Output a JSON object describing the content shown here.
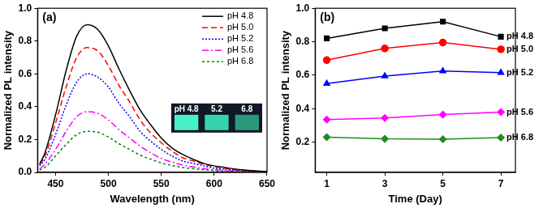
{
  "chart_data": [
    {
      "type": "line",
      "title": "(a)",
      "x_label": "Wavelength (nm)",
      "y_label": "Normalized PL intensity",
      "x": [
        435,
        440,
        450,
        460,
        470,
        480,
        490,
        500,
        510,
        520,
        530,
        540,
        550,
        560,
        570,
        580,
        590,
        600,
        610,
        620,
        630,
        640,
        650
      ],
      "series": [
        {
          "name": "pH 4.8",
          "color": "#000000",
          "line_style": "solid",
          "values": [
            0.05,
            0.12,
            0.35,
            0.62,
            0.83,
            0.9,
            0.87,
            0.77,
            0.63,
            0.5,
            0.38,
            0.29,
            0.21,
            0.15,
            0.11,
            0.08,
            0.055,
            0.04,
            0.03,
            0.02,
            0.014,
            0.009,
            0.005
          ]
        },
        {
          "name": "pH 5.0",
          "color": "#ff0000",
          "line_style": "dashed",
          "values": [
            0.05,
            0.1,
            0.3,
            0.52,
            0.7,
            0.76,
            0.74,
            0.65,
            0.53,
            0.43,
            0.32,
            0.24,
            0.18,
            0.13,
            0.09,
            0.07,
            0.05,
            0.035,
            0.025,
            0.017,
            0.011,
            0.008,
            0.005
          ]
        },
        {
          "name": "pH 5.2",
          "color": "#0000ff",
          "line_style": "dotted",
          "values": [
            0.04,
            0.08,
            0.23,
            0.41,
            0.55,
            0.6,
            0.58,
            0.52,
            0.42,
            0.34,
            0.25,
            0.19,
            0.14,
            0.1,
            0.07,
            0.055,
            0.04,
            0.026,
            0.02,
            0.013,
            0.009,
            0.006,
            0.004
          ]
        },
        {
          "name": "pH 5.6",
          "color": "#ff00ff",
          "line_style": "dashdot",
          "values": [
            0.02,
            0.05,
            0.14,
            0.25,
            0.34,
            0.37,
            0.36,
            0.32,
            0.26,
            0.21,
            0.16,
            0.12,
            0.085,
            0.063,
            0.045,
            0.033,
            0.023,
            0.016,
            0.012,
            0.008,
            0.006,
            0.004,
            0.002
          ]
        },
        {
          "name": "pH 6.8",
          "color": "#008000",
          "line_style": "shortdash",
          "values": [
            0.015,
            0.03,
            0.1,
            0.17,
            0.23,
            0.25,
            0.245,
            0.215,
            0.175,
            0.14,
            0.105,
            0.08,
            0.058,
            0.042,
            0.03,
            0.022,
            0.016,
            0.011,
            0.008,
            0.006,
            0.004,
            0.003,
            0.002
          ]
        }
      ],
      "xlim": [
        433,
        650
      ],
      "xticks": [
        450,
        500,
        550,
        600,
        650
      ],
      "ylim": [
        0,
        1
      ],
      "yticks": [
        {
          "value": 0,
          "label": "0.0"
        },
        0.2,
        0.4,
        0.6,
        0.8,
        {
          "value": 1,
          "label": "1.0"
        }
      ],
      "grid": false,
      "legend": "upper right",
      "annotations": [
        "pH 4.8",
        "5.2",
        "6.8"
      ]
    },
    {
      "type": "line",
      "title": "(b)",
      "x_label": "Time (Day)",
      "y_label": "Normalized PL intensity",
      "x": [
        1,
        3,
        5,
        7
      ],
      "series": [
        {
          "name": "pH 4.8",
          "color": "#000000",
          "marker": "square",
          "values": [
            0.82,
            0.88,
            0.92,
            0.83
          ]
        },
        {
          "name": "pH 5.0",
          "color": "#ff0000",
          "marker": "circle",
          "values": [
            0.69,
            0.76,
            0.795,
            0.755
          ]
        },
        {
          "name": "pH 5.2",
          "color": "#0000ff",
          "marker": "triangle",
          "values": [
            0.55,
            0.595,
            0.625,
            0.615
          ]
        },
        {
          "name": "pH 5.6",
          "color": "#ff00ff",
          "marker": "diamond",
          "values": [
            0.335,
            0.345,
            0.365,
            0.38
          ]
        },
        {
          "name": "pH 6.8",
          "color": "#228b22",
          "marker": "diamond",
          "values": [
            0.23,
            0.22,
            0.218,
            0.228
          ]
        }
      ],
      "xlim": [
        0.6,
        7.5
      ],
      "xticks": [
        1,
        3,
        5,
        7
      ],
      "ylim": [
        0.02,
        1
      ],
      "yticks": [
        0.2,
        0.4,
        0.6,
        0.8,
        {
          "value": 1,
          "label": "1.0"
        }
      ],
      "grid": false,
      "legend": "right"
    }
  ]
}
